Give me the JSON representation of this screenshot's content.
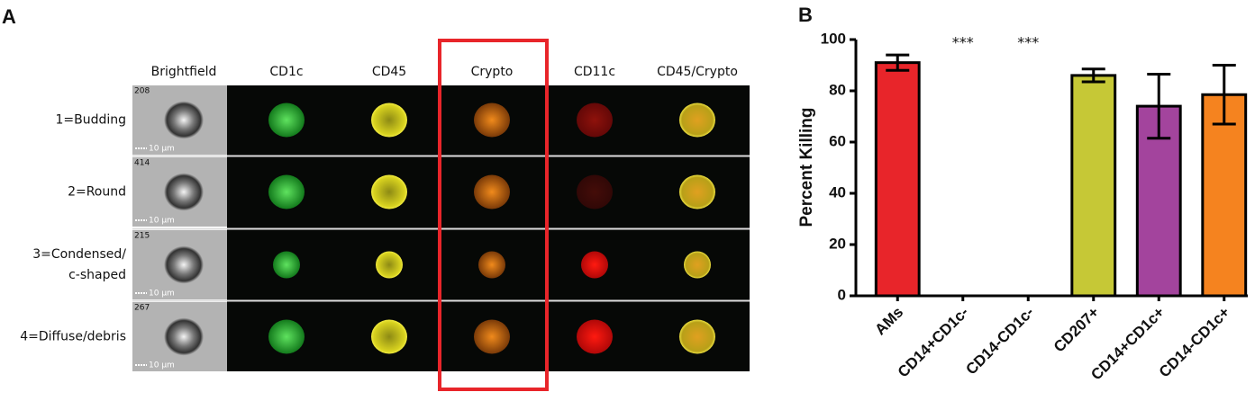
{
  "panel_a": {
    "label": "A",
    "columns": [
      "Brightfield",
      "CD1c",
      "CD45",
      "Crypto",
      "CD11c",
      "CD45/Crypto"
    ],
    "rows": [
      {
        "label": [
          "1=Budding"
        ],
        "id": "208",
        "scale": "10 µm"
      },
      {
        "label": [
          "2=Round"
        ],
        "id": "414",
        "scale": "10 µm"
      },
      {
        "label": [
          "3=Condensed/",
          "c-shaped"
        ],
        "id": "215",
        "scale": "10 µm"
      },
      {
        "label": [
          "4=Diffuse/debris"
        ],
        "id": "267",
        "scale": "10 µm"
      }
    ]
  },
  "panel_b": {
    "label": "B"
  },
  "chart_data": {
    "type": "bar",
    "y_label": "Percent Killing",
    "categories": [
      "AMs",
      "CD14+CD1c-",
      "CD14-CD1c-",
      "CD207+",
      "CD14+CD1c+",
      "CD14-CD1c+"
    ],
    "values": [
      91,
      0,
      0,
      86,
      74,
      78.5
    ],
    "errors": [
      3,
      null,
      null,
      2.5,
      12.5,
      11.5
    ],
    "colors": [
      "#e8252a",
      "#ffffff",
      "#ffffff",
      "#c6c836",
      "#a3449d",
      "#f5831f"
    ],
    "ylim": [
      0,
      100
    ],
    "yticks": [
      0,
      20,
      40,
      60,
      80,
      100
    ],
    "annotations": [
      {
        "text": "***",
        "x": "CD14+CD1c-"
      },
      {
        "text": "***",
        "x": "CD14-CD1c-"
      }
    ]
  }
}
